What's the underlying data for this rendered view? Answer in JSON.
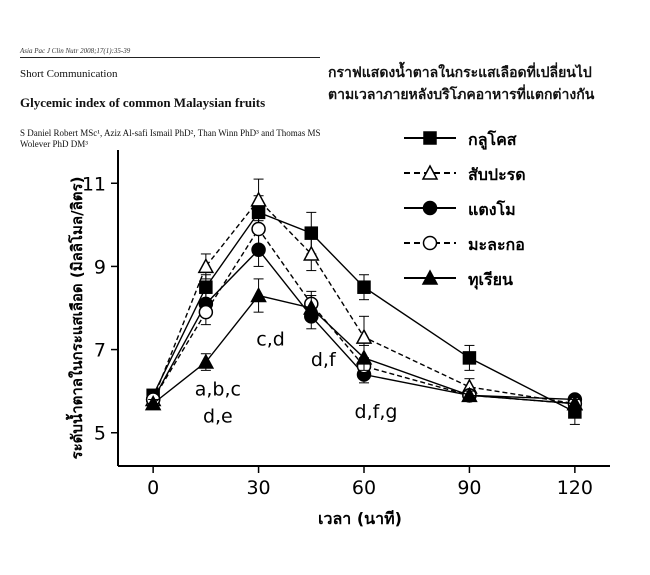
{
  "header": {
    "journal_ref": "Asia Pac J Clin Nutr 2008;17(1):35-39",
    "section": "Short Communication",
    "paper_title": "Glycemic index of common Malaysian fruits",
    "authors_line1": "S Daniel Robert MSc¹, Aziz Al-safi Ismail PhD², Than Winn PhD³ and Thomas MS",
    "authors_line2": "Wolever PhD DM³",
    "thai_title_line1": "กราฟแสดงน้ำตาลในกระแสเลือดที่เปลี่ยนไป",
    "thai_title_line2": "ตามเวลาภายหลังบริโภคอาหารที่แตกต่างกัน"
  },
  "chart_data": {
    "type": "line",
    "title": "",
    "xlabel": "เวลา (นาที)",
    "ylabel": "ระดับน้ำตาลในกระแสเลือด (มิลลิโมล/ลิตร)",
    "x": [
      0,
      15,
      30,
      45,
      60,
      90,
      120
    ],
    "xticks": [
      0,
      30,
      60,
      90,
      120
    ],
    "yticks": [
      5,
      7,
      9,
      11
    ],
    "xlim": [
      -10,
      130
    ],
    "ylim": [
      4.2,
      11.8
    ],
    "grid": false,
    "legend_position": "top-right",
    "series": [
      {
        "name": "กลูโคส",
        "marker": "square",
        "fill": "filled",
        "dash": "solid",
        "values": [
          5.9,
          8.5,
          10.3,
          9.8,
          8.5,
          6.8,
          5.5
        ],
        "err": [
          0.1,
          0.3,
          0.4,
          0.5,
          0.3,
          0.3,
          0.3
        ]
      },
      {
        "name": "สับปะรด",
        "marker": "triangle",
        "fill": "open",
        "dash": "dashed",
        "values": [
          5.8,
          9.0,
          10.6,
          9.3,
          7.3,
          6.1,
          5.7
        ],
        "err": [
          0.1,
          0.3,
          0.5,
          0.4,
          0.5,
          0.2,
          0.2
        ]
      },
      {
        "name": "แตงโม",
        "marker": "circle",
        "fill": "filled",
        "dash": "solid",
        "values": [
          5.8,
          8.1,
          9.4,
          7.8,
          6.4,
          5.9,
          5.8
        ],
        "err": [
          0.1,
          0.3,
          0.4,
          0.3,
          0.2,
          0.1,
          0.1
        ]
      },
      {
        "name": "มะละกอ",
        "marker": "circle",
        "fill": "open",
        "dash": "dashed",
        "values": [
          5.8,
          7.9,
          9.9,
          8.1,
          6.6,
          5.9,
          5.7
        ],
        "err": [
          0.1,
          0.3,
          0.4,
          0.3,
          0.2,
          0.1,
          0.1
        ]
      },
      {
        "name": "ทุเรียน",
        "marker": "triangle",
        "fill": "filled",
        "dash": "solid",
        "values": [
          5.7,
          6.7,
          8.3,
          8.0,
          6.8,
          5.9,
          5.7
        ],
        "err": [
          0.1,
          0.2,
          0.4,
          0.3,
          0.3,
          0.1,
          0.1
        ]
      }
    ],
    "annotations": [
      {
        "x": 15,
        "text": "a,b,c",
        "y": 5.9
      },
      {
        "x": 15,
        "text": "d,e",
        "y": 5.25
      },
      {
        "x": 30,
        "text": "c,d",
        "y": 7.1
      },
      {
        "x": 45,
        "text": "d,f",
        "y": 6.6
      },
      {
        "x": 60,
        "text": "d,f,g",
        "y": 5.35
      }
    ]
  }
}
